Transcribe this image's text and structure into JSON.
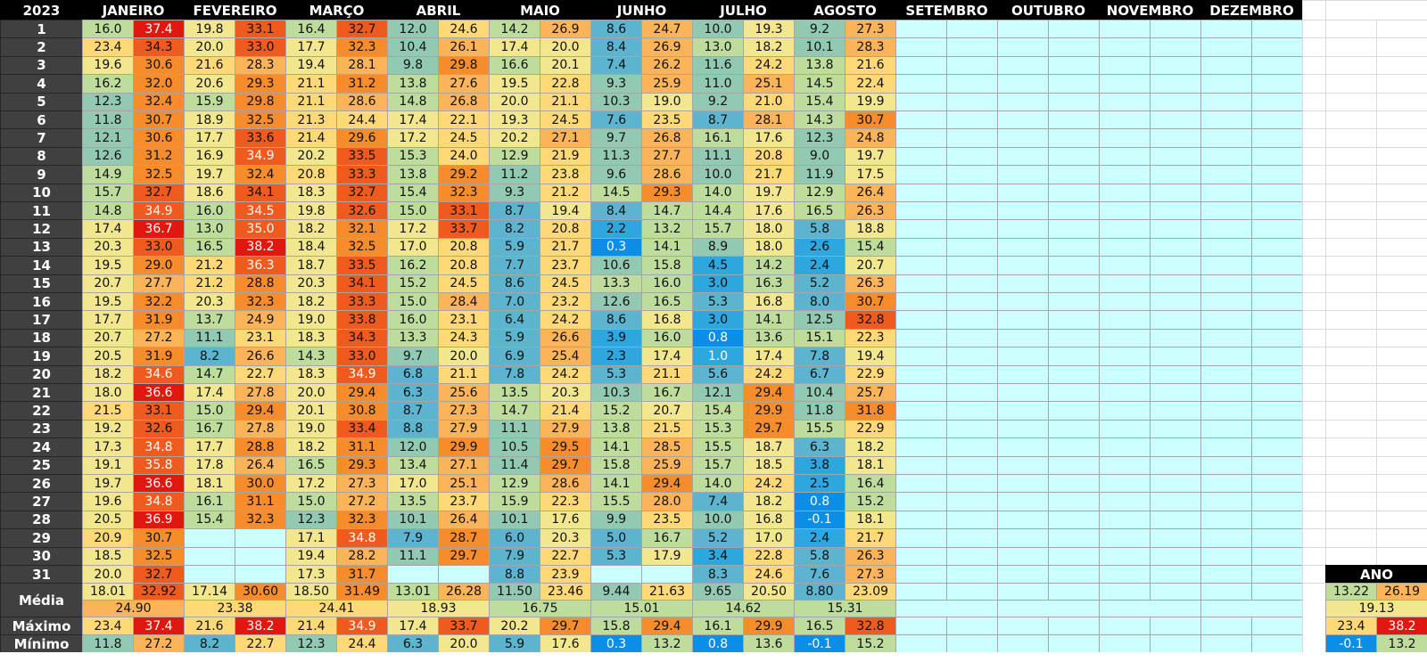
{
  "sheet": {
    "year": "2023",
    "months": [
      "JANEIRO",
      "FEVEREIRO",
      "MARÇO",
      "ABRIL",
      "MAIO",
      "JUNHO",
      "JULHO",
      "AGOSTO",
      "SETEMBRO",
      "OUTUBRO",
      "NOVEMBRO",
      "DEZEMBRO"
    ],
    "days": [
      "1",
      "2",
      "3",
      "4",
      "5",
      "6",
      "7",
      "8",
      "9",
      "10",
      "11",
      "12",
      "13",
      "14",
      "15",
      "16",
      "17",
      "18",
      "19",
      "20",
      "21",
      "22",
      "23",
      "24",
      "25",
      "26",
      "27",
      "28",
      "29",
      "30",
      "31"
    ],
    "data": [
      [
        [
          "16.0",
          "37.4"
        ],
        [
          "19.8",
          "33.1"
        ],
        [
          "16.4",
          "32.7"
        ],
        [
          "12.0",
          "24.6"
        ],
        [
          "14.2",
          "26.9"
        ],
        [
          "8.6",
          "24.7"
        ],
        [
          "10.0",
          "19.3"
        ],
        [
          "9.2",
          "27.3"
        ]
      ],
      [
        [
          "23.4",
          "34.3"
        ],
        [
          "20.0",
          "33.0"
        ],
        [
          "17.7",
          "32.3"
        ],
        [
          "10.4",
          "26.1"
        ],
        [
          "17.4",
          "20.0"
        ],
        [
          "8.4",
          "26.9"
        ],
        [
          "13.0",
          "18.2"
        ],
        [
          "10.1",
          "28.3"
        ]
      ],
      [
        [
          "19.6",
          "30.6"
        ],
        [
          "21.6",
          "28.3"
        ],
        [
          "19.4",
          "28.1"
        ],
        [
          "9.8",
          "29.8"
        ],
        [
          "16.6",
          "20.1"
        ],
        [
          "7.4",
          "26.2"
        ],
        [
          "11.6",
          "24.2"
        ],
        [
          "13.8",
          "21.6"
        ]
      ],
      [
        [
          "16.2",
          "32.0"
        ],
        [
          "20.6",
          "29.3"
        ],
        [
          "21.1",
          "31.2"
        ],
        [
          "13.8",
          "27.6"
        ],
        [
          "19.5",
          "22.8"
        ],
        [
          "9.3",
          "25.9"
        ],
        [
          "11.0",
          "25.1"
        ],
        [
          "14.5",
          "22.4"
        ]
      ],
      [
        [
          "12.3",
          "32.4"
        ],
        [
          "15.9",
          "29.8"
        ],
        [
          "21.1",
          "28.6"
        ],
        [
          "14.8",
          "26.8"
        ],
        [
          "20.0",
          "21.1"
        ],
        [
          "10.3",
          "19.0"
        ],
        [
          "9.2",
          "21.0"
        ],
        [
          "15.4",
          "19.9"
        ]
      ],
      [
        [
          "11.8",
          "30.7"
        ],
        [
          "18.9",
          "32.5"
        ],
        [
          "21.3",
          "24.4"
        ],
        [
          "17.4",
          "22.1"
        ],
        [
          "19.3",
          "24.5"
        ],
        [
          "7.6",
          "23.5"
        ],
        [
          "8.7",
          "28.1"
        ],
        [
          "14.3",
          "30.7"
        ]
      ],
      [
        [
          "12.1",
          "30.6"
        ],
        [
          "17.7",
          "33.6"
        ],
        [
          "21.4",
          "29.6"
        ],
        [
          "17.2",
          "24.5"
        ],
        [
          "20.2",
          "27.1"
        ],
        [
          "9.7",
          "26.8"
        ],
        [
          "16.1",
          "17.6"
        ],
        [
          "12.3",
          "24.8"
        ]
      ],
      [
        [
          "12.6",
          "31.2"
        ],
        [
          "16.9",
          "34.9"
        ],
        [
          "20.2",
          "33.5"
        ],
        [
          "15.3",
          "24.0"
        ],
        [
          "12.9",
          "21.9"
        ],
        [
          "11.3",
          "27.7"
        ],
        [
          "11.1",
          "20.8"
        ],
        [
          "9.0",
          "19.7"
        ]
      ],
      [
        [
          "14.9",
          "32.5"
        ],
        [
          "19.7",
          "32.4"
        ],
        [
          "20.8",
          "33.3"
        ],
        [
          "13.8",
          "29.2"
        ],
        [
          "11.2",
          "23.8"
        ],
        [
          "9.6",
          "28.6"
        ],
        [
          "10.0",
          "21.7"
        ],
        [
          "11.9",
          "17.5"
        ]
      ],
      [
        [
          "15.7",
          "32.7"
        ],
        [
          "18.6",
          "34.1"
        ],
        [
          "18.3",
          "32.7"
        ],
        [
          "15.4",
          "32.3"
        ],
        [
          "9.3",
          "21.2"
        ],
        [
          "14.5",
          "29.3"
        ],
        [
          "14.0",
          "19.7"
        ],
        [
          "12.9",
          "26.4"
        ]
      ],
      [
        [
          "14.8",
          "34.9"
        ],
        [
          "16.0",
          "34.5"
        ],
        [
          "19.8",
          "32.6"
        ],
        [
          "15.0",
          "33.1"
        ],
        [
          "8.7",
          "19.4"
        ],
        [
          "8.4",
          "14.7"
        ],
        [
          "14.4",
          "17.6"
        ],
        [
          "16.5",
          "26.3"
        ]
      ],
      [
        [
          "17.4",
          "36.7"
        ],
        [
          "13.0",
          "35.0"
        ],
        [
          "18.2",
          "32.1"
        ],
        [
          "17.2",
          "33.7"
        ],
        [
          "8.2",
          "20.8"
        ],
        [
          "2.2",
          "13.2"
        ],
        [
          "15.7",
          "18.0"
        ],
        [
          "5.8",
          "18.8"
        ]
      ],
      [
        [
          "20.3",
          "33.0"
        ],
        [
          "16.5",
          "38.2"
        ],
        [
          "18.4",
          "32.5"
        ],
        [
          "17.0",
          "20.8"
        ],
        [
          "5.9",
          "21.7"
        ],
        [
          "0.3",
          "14.1"
        ],
        [
          "8.9",
          "18.0"
        ],
        [
          "2.6",
          "15.4"
        ]
      ],
      [
        [
          "19.5",
          "29.0"
        ],
        [
          "21.2",
          "36.3"
        ],
        [
          "18.7",
          "33.5"
        ],
        [
          "16.2",
          "20.8"
        ],
        [
          "7.7",
          "23.7"
        ],
        [
          "10.6",
          "15.8"
        ],
        [
          "4.5",
          "14.2"
        ],
        [
          "2.4",
          "20.7"
        ]
      ],
      [
        [
          "20.7",
          "27.7"
        ],
        [
          "21.2",
          "28.8"
        ],
        [
          "20.3",
          "34.1"
        ],
        [
          "15.2",
          "24.5"
        ],
        [
          "8.6",
          "24.5"
        ],
        [
          "13.3",
          "16.0"
        ],
        [
          "3.0",
          "16.3"
        ],
        [
          "5.2",
          "26.3"
        ]
      ],
      [
        [
          "19.5",
          "32.2"
        ],
        [
          "20.3",
          "32.3"
        ],
        [
          "18.2",
          "33.3"
        ],
        [
          "15.0",
          "28.4"
        ],
        [
          "7.0",
          "23.2"
        ],
        [
          "12.6",
          "16.5"
        ],
        [
          "5.3",
          "16.8"
        ],
        [
          "8.0",
          "30.7"
        ]
      ],
      [
        [
          "17.7",
          "31.9"
        ],
        [
          "13.7",
          "24.9"
        ],
        [
          "19.0",
          "33.8"
        ],
        [
          "16.0",
          "23.1"
        ],
        [
          "6.4",
          "24.2"
        ],
        [
          "8.6",
          "16.8"
        ],
        [
          "3.0",
          "14.1"
        ],
        [
          "12.5",
          "32.8"
        ]
      ],
      [
        [
          "20.7",
          "27.2"
        ],
        [
          "11.1",
          "23.1"
        ],
        [
          "18.3",
          "34.3"
        ],
        [
          "13.3",
          "24.3"
        ],
        [
          "5.9",
          "26.6"
        ],
        [
          "3.9",
          "16.0"
        ],
        [
          "0.8",
          "13.6"
        ],
        [
          "15.1",
          "22.3"
        ]
      ],
      [
        [
          "20.5",
          "31.9"
        ],
        [
          "8.2",
          "26.6"
        ],
        [
          "14.3",
          "33.0"
        ],
        [
          "9.7",
          "20.0"
        ],
        [
          "6.9",
          "25.4"
        ],
        [
          "2.3",
          "17.4"
        ],
        [
          "1.0",
          "17.4"
        ],
        [
          "7.8",
          "19.4"
        ]
      ],
      [
        [
          "18.2",
          "34.6"
        ],
        [
          "14.7",
          "22.7"
        ],
        [
          "18.3",
          "34.9"
        ],
        [
          "6.8",
          "21.1"
        ],
        [
          "7.8",
          "24.2"
        ],
        [
          "5.3",
          "21.1"
        ],
        [
          "5.6",
          "24.2"
        ],
        [
          "6.7",
          "22.9"
        ]
      ],
      [
        [
          "18.0",
          "36.6"
        ],
        [
          "17.4",
          "27.8"
        ],
        [
          "20.0",
          "29.4"
        ],
        [
          "6.3",
          "25.6"
        ],
        [
          "13.5",
          "20.3"
        ],
        [
          "10.3",
          "16.7"
        ],
        [
          "12.1",
          "29.4"
        ],
        [
          "10.4",
          "25.7"
        ]
      ],
      [
        [
          "21.5",
          "33.1"
        ],
        [
          "15.0",
          "29.4"
        ],
        [
          "20.1",
          "30.8"
        ],
        [
          "8.7",
          "27.3"
        ],
        [
          "14.7",
          "21.4"
        ],
        [
          "15.2",
          "20.7"
        ],
        [
          "15.4",
          "29.9"
        ],
        [
          "11.8",
          "31.8"
        ]
      ],
      [
        [
          "19.2",
          "32.6"
        ],
        [
          "16.7",
          "27.8"
        ],
        [
          "19.0",
          "33.4"
        ],
        [
          "8.8",
          "27.9"
        ],
        [
          "11.1",
          "27.9"
        ],
        [
          "13.8",
          "21.5"
        ],
        [
          "15.3",
          "29.7"
        ],
        [
          "15.5",
          "22.9"
        ]
      ],
      [
        [
          "17.3",
          "34.8"
        ],
        [
          "17.7",
          "28.8"
        ],
        [
          "18.2",
          "31.1"
        ],
        [
          "12.0",
          "29.9"
        ],
        [
          "10.5",
          "29.5"
        ],
        [
          "14.1",
          "28.5"
        ],
        [
          "15.5",
          "18.7"
        ],
        [
          "6.3",
          "18.2"
        ]
      ],
      [
        [
          "19.1",
          "35.8"
        ],
        [
          "17.8",
          "26.4"
        ],
        [
          "16.5",
          "29.3"
        ],
        [
          "13.4",
          "27.1"
        ],
        [
          "11.4",
          "29.7"
        ],
        [
          "15.8",
          "25.9"
        ],
        [
          "15.7",
          "18.5"
        ],
        [
          "3.8",
          "18.1"
        ]
      ],
      [
        [
          "19.7",
          "36.6"
        ],
        [
          "18.1",
          "30.0"
        ],
        [
          "17.2",
          "27.3"
        ],
        [
          "17.0",
          "25.1"
        ],
        [
          "12.9",
          "28.6"
        ],
        [
          "14.1",
          "29.4"
        ],
        [
          "14.0",
          "24.2"
        ],
        [
          "2.5",
          "16.4"
        ]
      ],
      [
        [
          "19.6",
          "34.8"
        ],
        [
          "16.1",
          "31.1"
        ],
        [
          "15.0",
          "27.2"
        ],
        [
          "13.5",
          "23.7"
        ],
        [
          "15.9",
          "22.3"
        ],
        [
          "15.5",
          "28.0"
        ],
        [
          "7.4",
          "18.2"
        ],
        [
          "0.8",
          "15.2"
        ]
      ],
      [
        [
          "20.5",
          "36.9"
        ],
        [
          "15.4",
          "32.3"
        ],
        [
          "12.3",
          "32.3"
        ],
        [
          "10.1",
          "26.4"
        ],
        [
          "10.1",
          "17.6"
        ],
        [
          "9.9",
          "23.5"
        ],
        [
          "10.0",
          "16.8"
        ],
        [
          "-0.1",
          "18.1"
        ]
      ],
      [
        [
          "20.9",
          "30.7"
        ],
        null,
        [
          "17.1",
          "34.8"
        ],
        [
          "7.9",
          "28.7"
        ],
        [
          "6.0",
          "20.3"
        ],
        [
          "5.0",
          "16.7"
        ],
        [
          "5.2",
          "17.0"
        ],
        [
          "2.4",
          "21.7"
        ]
      ],
      [
        [
          "18.5",
          "32.5"
        ],
        null,
        [
          "19.4",
          "28.2"
        ],
        [
          "11.1",
          "29.7"
        ],
        [
          "7.9",
          "22.7"
        ],
        [
          "5.3",
          "17.9"
        ],
        [
          "3.4",
          "22.8"
        ],
        [
          "5.8",
          "26.3"
        ]
      ],
      [
        [
          "20.0",
          "32.7"
        ],
        null,
        [
          "17.3",
          "31.7"
        ],
        null,
        [
          "8.8",
          "23.9"
        ],
        null,
        [
          "8.3",
          "24.6"
        ],
        [
          "7.6",
          "27.3"
        ]
      ]
    ],
    "summary": {
      "media_label": "Média",
      "maximo_label": "Máximo",
      "minimo_label": "Mínimo",
      "media": [
        [
          "18.01",
          "32.92"
        ],
        [
          "17.14",
          "30.60"
        ],
        [
          "18.50",
          "31.49"
        ],
        [
          "13.01",
          "26.28"
        ],
        [
          "11.50",
          "23.46"
        ],
        [
          "9.44",
          "21.63"
        ],
        [
          "9.65",
          "20.50"
        ],
        [
          "8.80",
          "23.09"
        ]
      ],
      "media_combined": [
        "24.90",
        "23.38",
        "24.41",
        "18.93",
        "16.75",
        "15.01",
        "14.62",
        "15.31"
      ],
      "maximo": [
        [
          "23.4",
          "37.4"
        ],
        [
          "21.6",
          "38.2"
        ],
        [
          "21.4",
          "34.9"
        ],
        [
          "17.4",
          "33.7"
        ],
        [
          "20.2",
          "29.7"
        ],
        [
          "15.8",
          "29.4"
        ],
        [
          "16.1",
          "29.9"
        ],
        [
          "16.5",
          "32.8"
        ]
      ],
      "minimo": [
        [
          "11.8",
          "27.2"
        ],
        [
          "8.2",
          "22.7"
        ],
        [
          "12.3",
          "24.4"
        ],
        [
          "6.3",
          "20.0"
        ],
        [
          "5.9",
          "17.6"
        ],
        [
          "0.3",
          "13.2"
        ],
        [
          "0.8",
          "13.6"
        ],
        [
          "-0.1",
          "15.2"
        ]
      ]
    },
    "ano": {
      "label": "ANO",
      "media": [
        "13.22",
        "26.19"
      ],
      "media_combined": "19.13",
      "maximo": [
        "23.4",
        "38.2"
      ],
      "minimo": [
        "-0.1",
        "13.2"
      ]
    },
    "colors": {
      "header": "#000000",
      "row_label": "#404040",
      "empty_month": "#ccffff",
      "scale": [
        "#0a8ee6",
        "#2ea6de",
        "#5cb4cf",
        "#92c9b3",
        "#bedc9c",
        "#f2e78e",
        "#ffd878",
        "#fcb45a",
        "#f78c2c",
        "#ef5a1e",
        "#e01810"
      ]
    }
  }
}
